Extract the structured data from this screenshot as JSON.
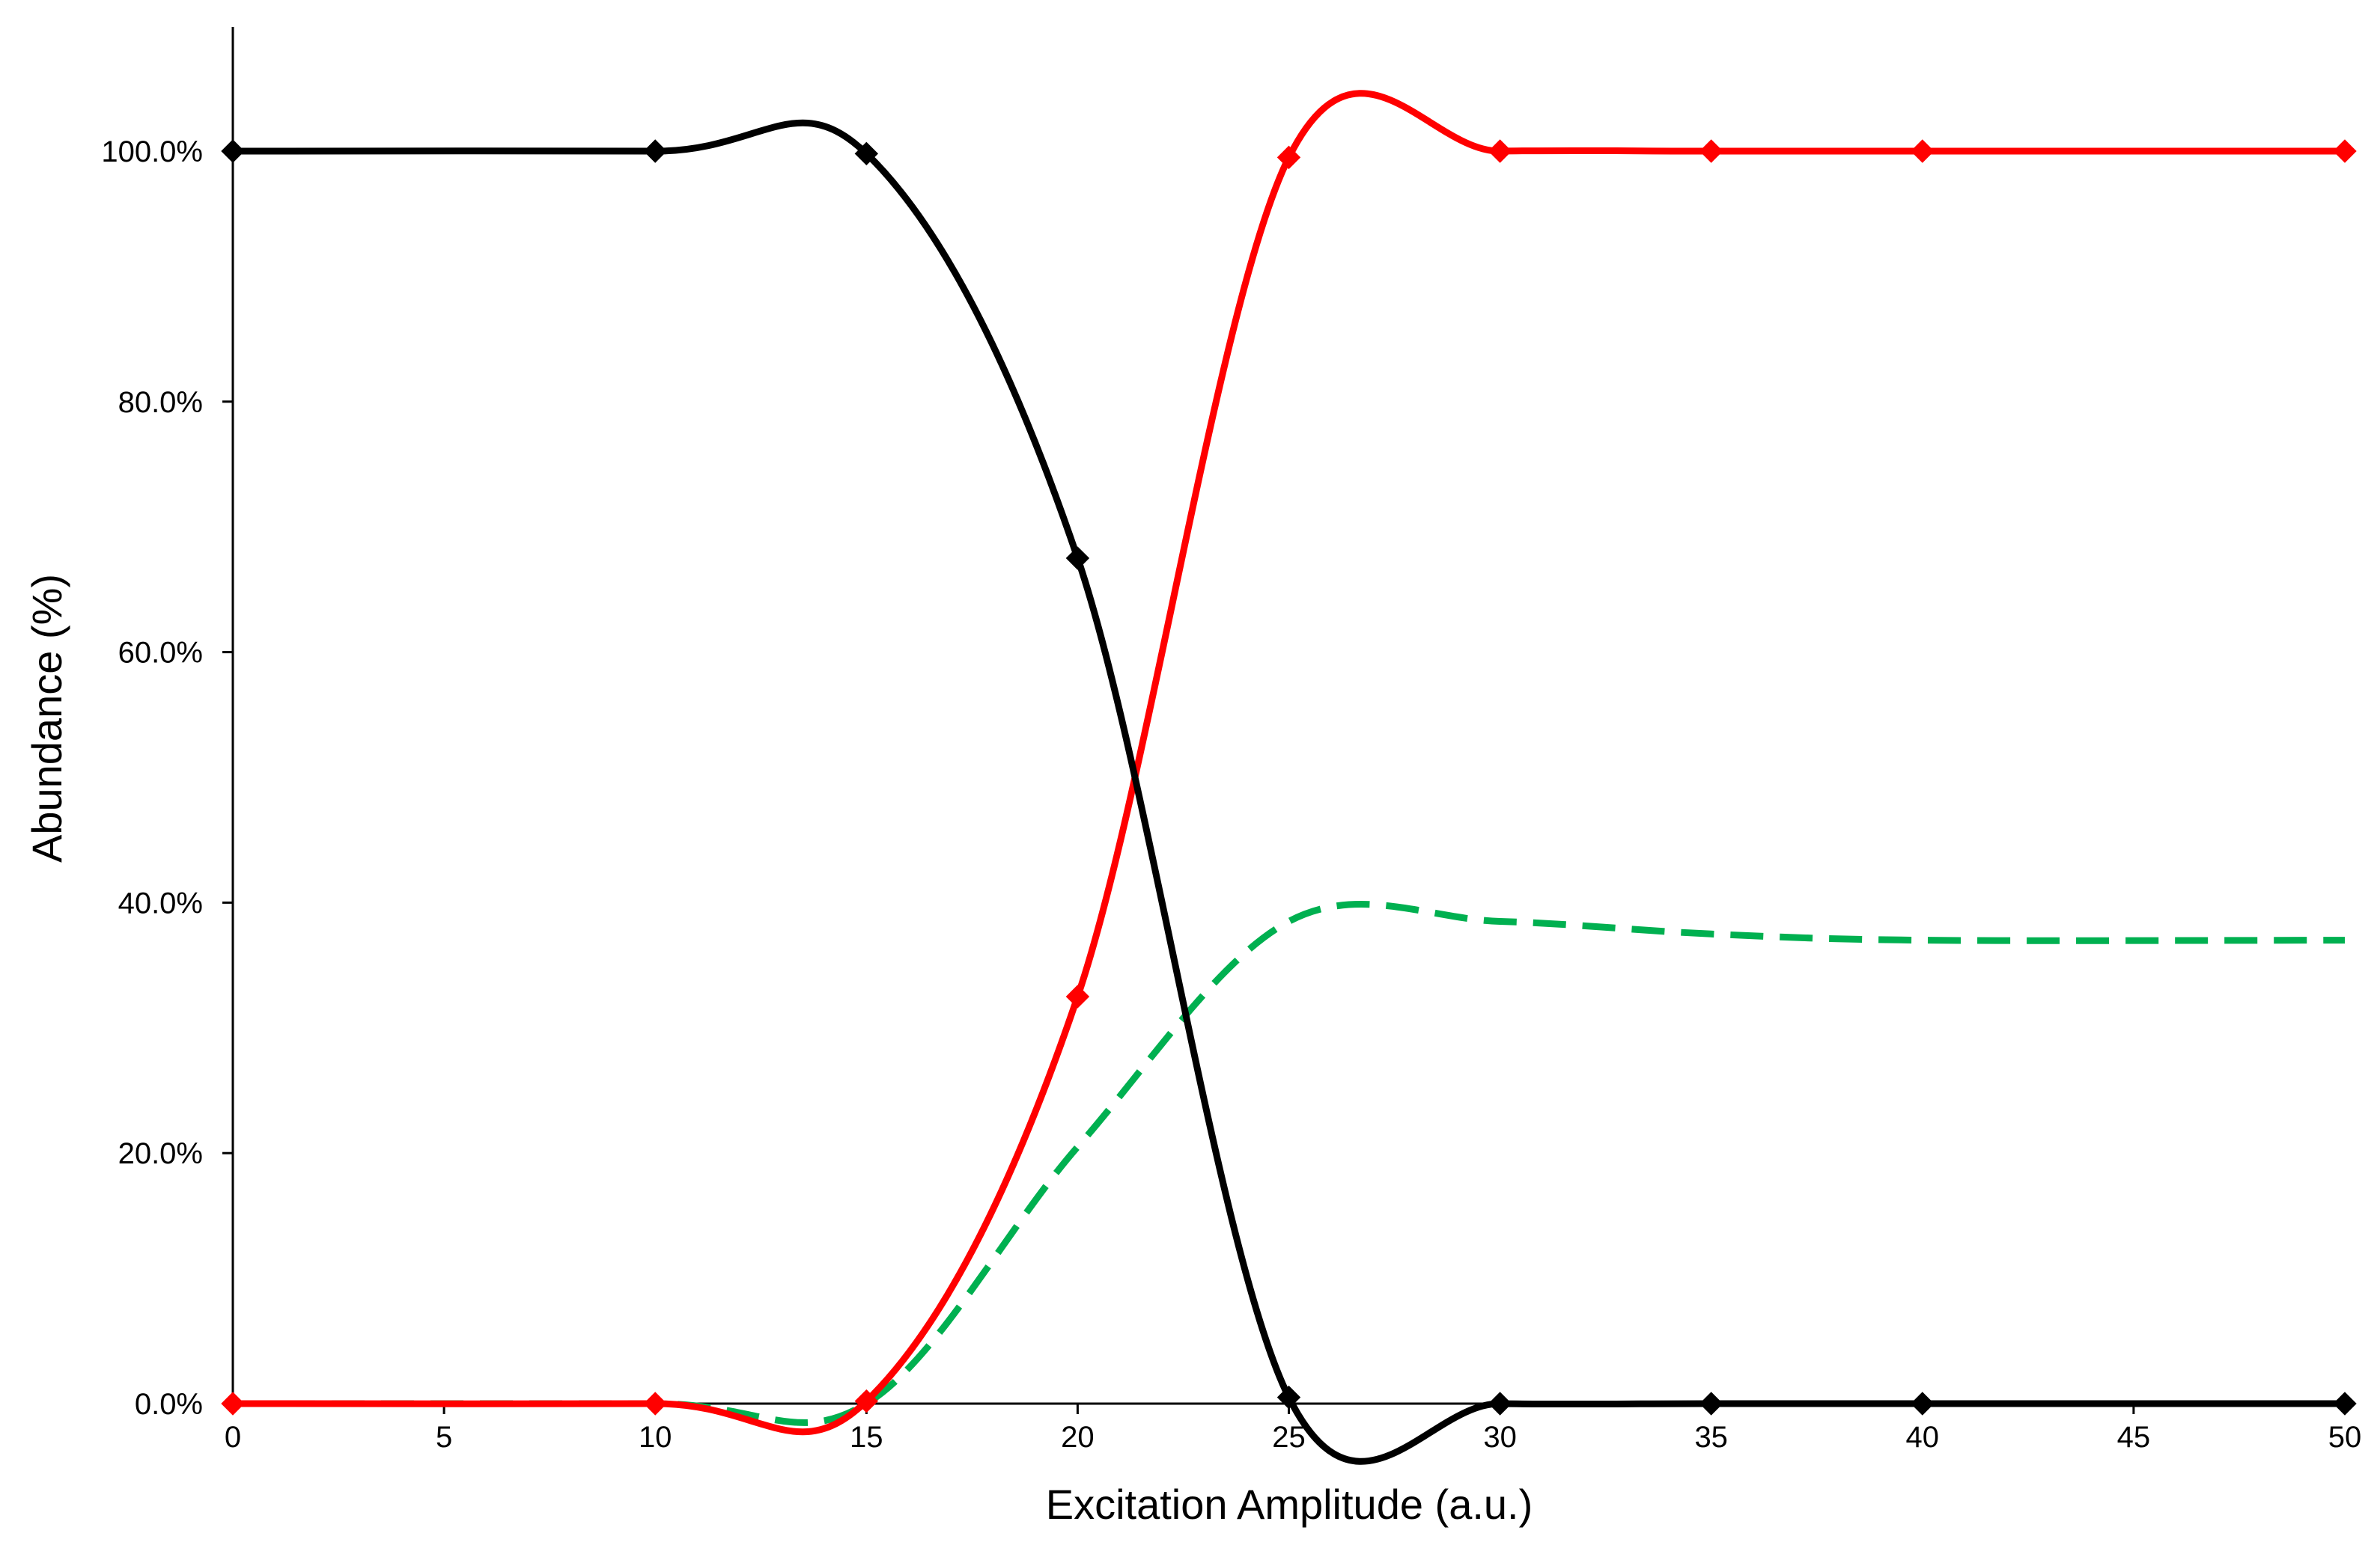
{
  "chart_data": {
    "type": "line",
    "xlabel": "Excitation Amplitude (a.u.)",
    "ylabel": "Abundance (%)",
    "xlim": [
      0,
      50
    ],
    "ylim": [
      0,
      110
    ],
    "x_ticks": [
      0,
      5,
      10,
      15,
      20,
      25,
      30,
      35,
      40,
      45,
      50
    ],
    "x_tick_labels": [
      "0",
      "5",
      "10",
      "15",
      "20",
      "25",
      "30",
      "35",
      "40",
      "45",
      "50"
    ],
    "y_ticks": [
      0,
      20,
      40,
      60,
      80,
      100
    ],
    "y_tick_labels": [
      "0.0%",
      "20.0%",
      "40.0%",
      "60.0%",
      "80.0%",
      "100.0%"
    ],
    "grid": false,
    "legend": "none",
    "series": [
      {
        "color": "#000000",
        "line_style": "solid",
        "markers": "diamond",
        "x": [
          0,
          10,
          15,
          20,
          25,
          30,
          35,
          40,
          50
        ],
        "y": [
          100,
          100,
          99.8,
          67.5,
          0.5,
          0,
          0,
          0,
          0
        ]
      },
      {
        "color": "#ff0000",
        "line_style": "solid",
        "markers": "diamond",
        "x": [
          0,
          10,
          15,
          20,
          25,
          30,
          35,
          40,
          50
        ],
        "y": [
          0,
          0,
          0.2,
          32.5,
          99.5,
          100,
          100,
          100,
          100
        ]
      },
      {
        "color": "#00b050",
        "line_style": "dashed",
        "markers": "none",
        "x": [
          0,
          10,
          15,
          20,
          25,
          30,
          35,
          40,
          50
        ],
        "y": [
          0,
          0,
          0,
          20.5,
          38.5,
          38.5,
          37.5,
          37,
          37
        ]
      }
    ]
  }
}
